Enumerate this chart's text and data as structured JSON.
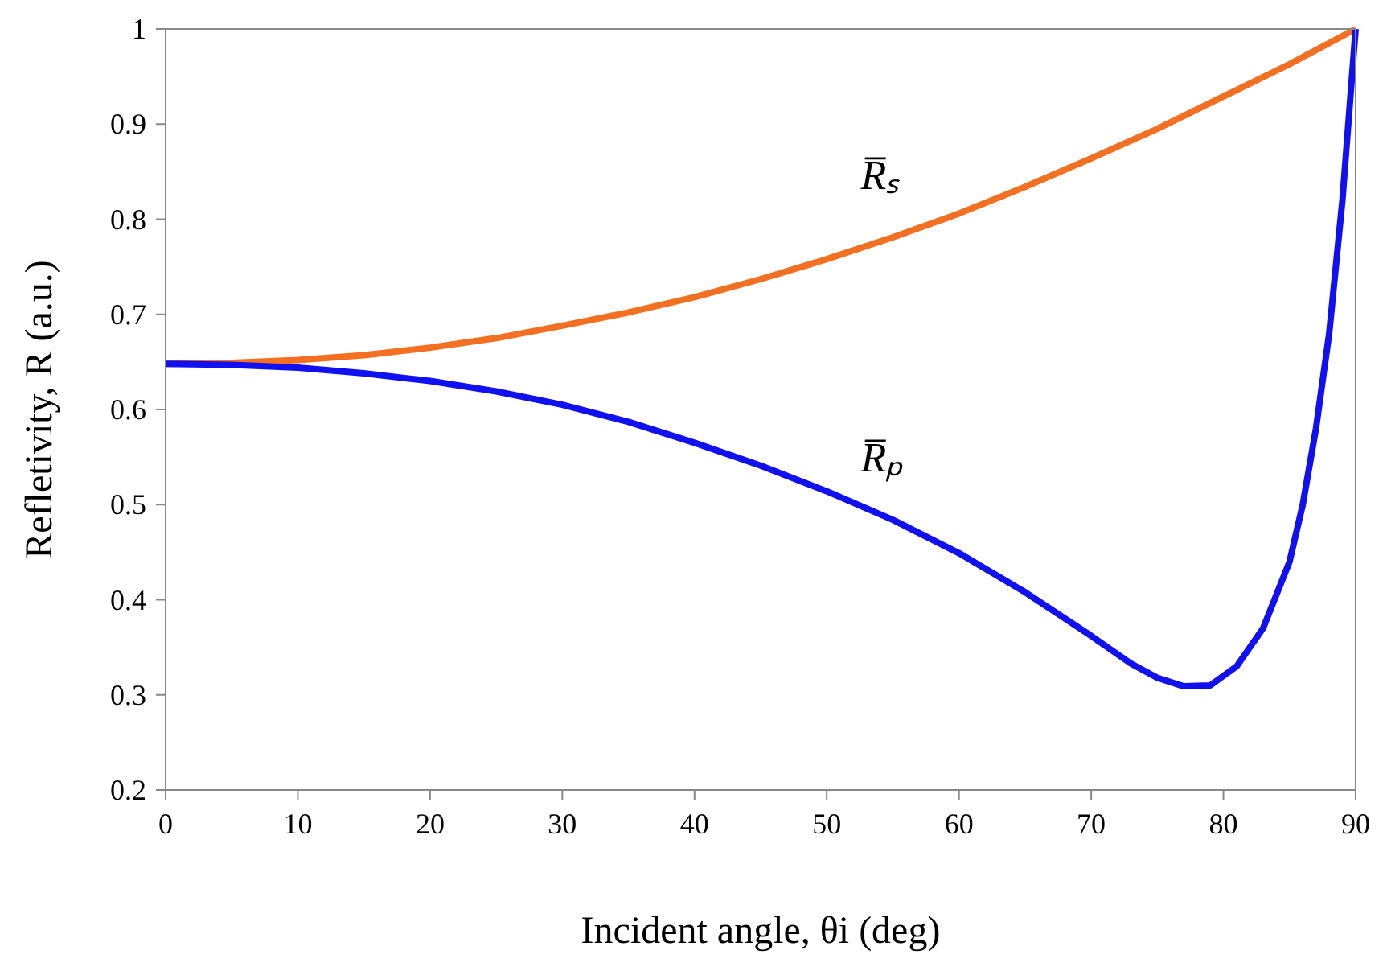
{
  "chart_data": {
    "type": "line",
    "xlabel": "Incident angle, θi (deg)",
    "ylabel": "Refletivity, R (a.u.)",
    "xlim": [
      0,
      90
    ],
    "xticks": [
      0,
      10,
      20,
      30,
      40,
      50,
      60,
      70,
      80,
      90
    ],
    "ylim": [
      0.2,
      1
    ],
    "yticks": [
      0.2,
      0.3,
      0.4,
      0.5,
      0.6,
      0.7,
      0.8,
      0.9,
      1
    ],
    "marker": "none",
    "line_style": "solid",
    "series": [
      {
        "name": "R̅ₛ",
        "color": "#f36f21",
        "x": [
          0,
          5,
          10,
          15,
          20,
          25,
          30,
          35,
          40,
          45,
          50,
          55,
          60,
          65,
          70,
          75,
          80,
          85,
          90
        ],
        "values": [
          0.648,
          0.649,
          0.652,
          0.657,
          0.665,
          0.675,
          0.688,
          0.702,
          0.718,
          0.737,
          0.758,
          0.781,
          0.806,
          0.834,
          0.864,
          0.895,
          0.929,
          0.963,
          1.0
        ]
      },
      {
        "name": "R̅ₚ",
        "color": "#1010f0",
        "x": [
          0,
          5,
          10,
          15,
          20,
          25,
          30,
          35,
          40,
          45,
          50,
          55,
          60,
          65,
          70,
          73,
          75,
          77,
          79,
          81,
          83,
          85,
          86,
          87,
          88,
          89,
          90
        ],
        "values": [
          0.648,
          0.647,
          0.644,
          0.638,
          0.63,
          0.619,
          0.605,
          0.587,
          0.565,
          0.541,
          0.514,
          0.484,
          0.449,
          0.408,
          0.362,
          0.333,
          0.318,
          0.309,
          0.31,
          0.33,
          0.37,
          0.44,
          0.5,
          0.58,
          0.68,
          0.82,
          1.0
        ]
      }
    ]
  }
}
